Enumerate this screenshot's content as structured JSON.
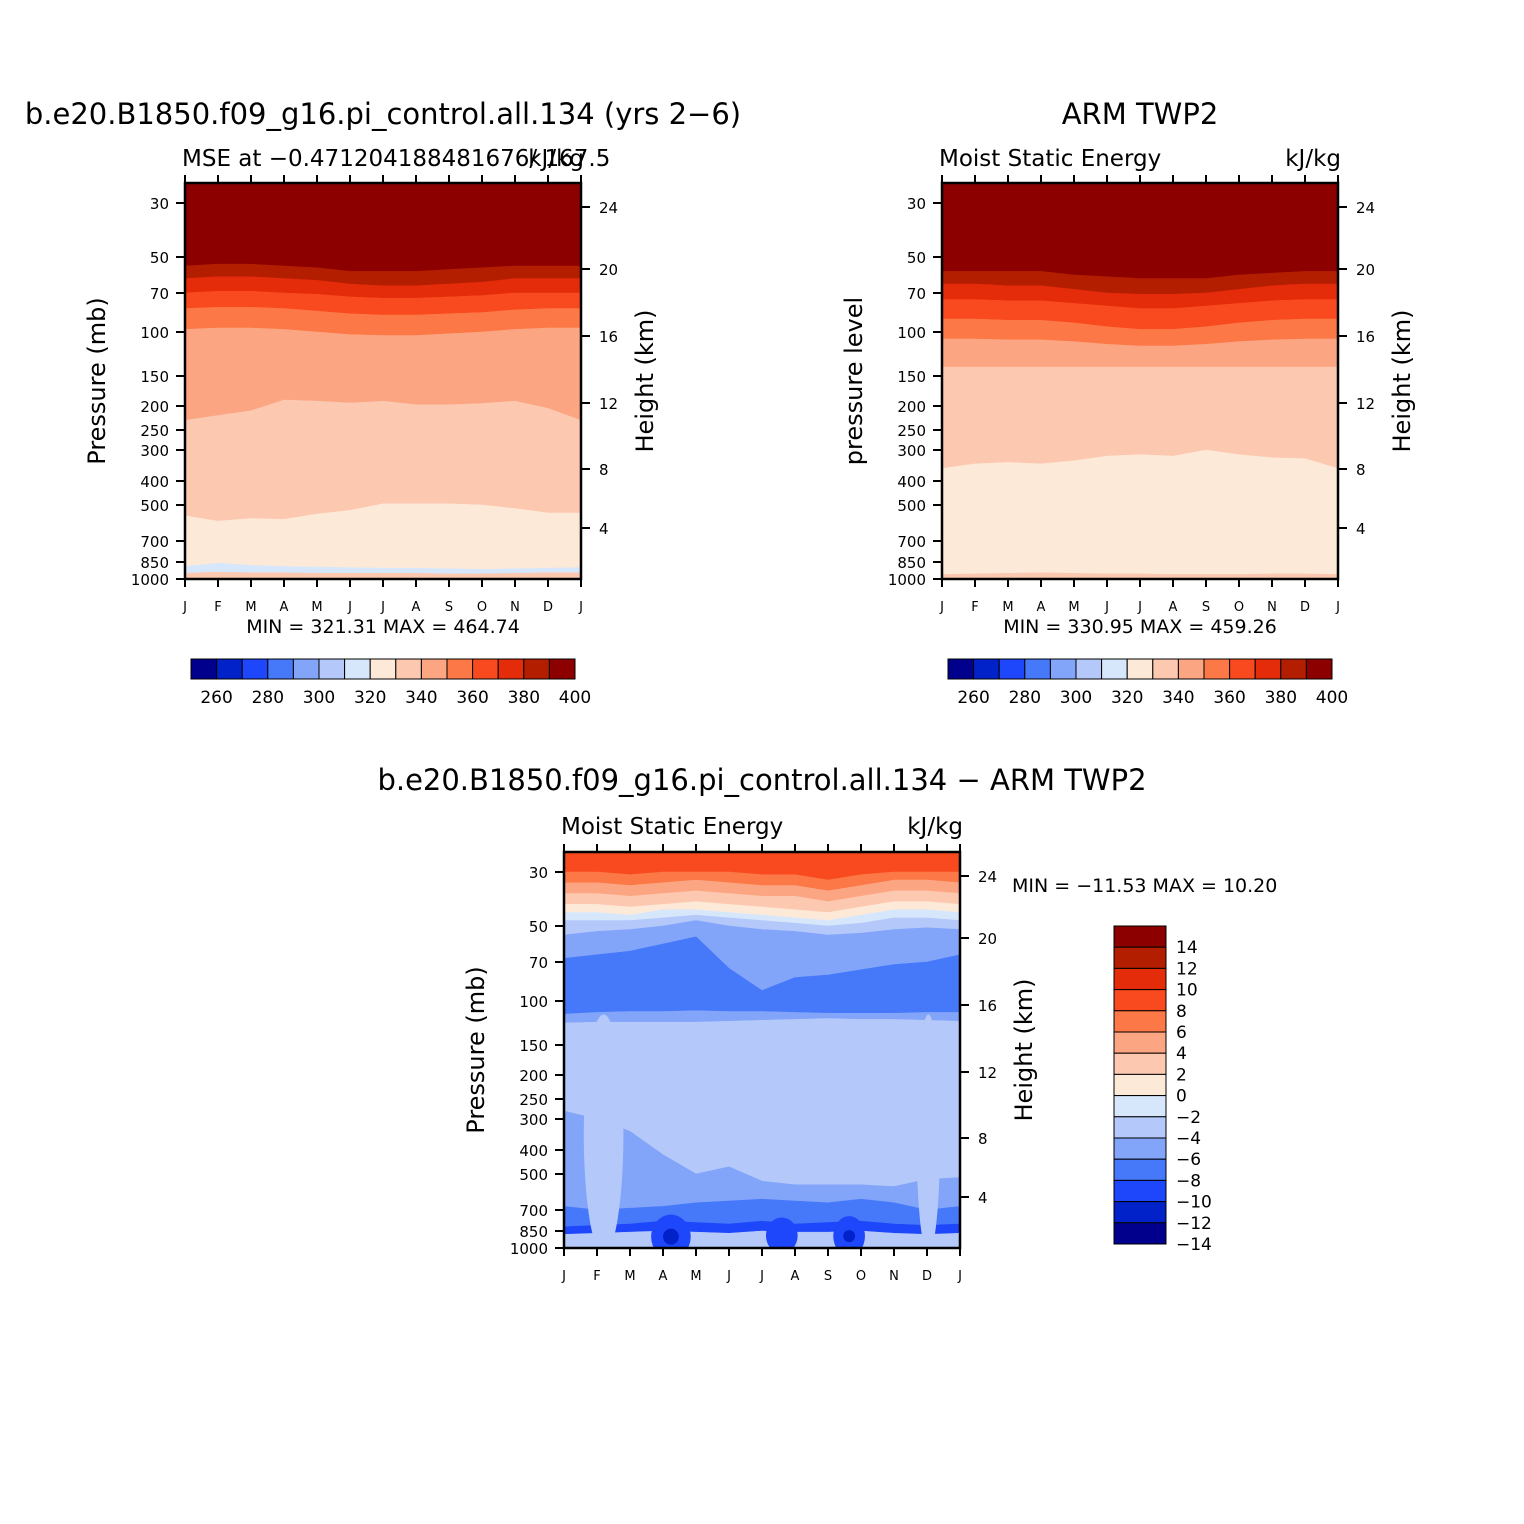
{
  "chart_data": [
    {
      "type": "heatmap",
      "title": "b.e20.B1850.f09_g16.pi_control.all.134 (yrs 2−6)",
      "subtitle_left": "MSE at −0.471204188481676/ 167.5",
      "subtitle_right": "kJ/kg",
      "ylabel_left": "Pressure (mb)",
      "ylabel_right": "Height (km)",
      "x_ticks": [
        "J",
        "F",
        "M",
        "A",
        "M",
        "J",
        "J",
        "A",
        "S",
        "O",
        "N",
        "D",
        "J"
      ],
      "p_ticks": [
        30,
        50,
        70,
        100,
        150,
        200,
        250,
        300,
        400,
        500,
        700,
        850,
        1000
      ],
      "h_ticks": [
        24,
        20,
        16,
        12,
        8,
        4
      ],
      "stats": "MIN = 321.31 MAX = 464.74",
      "levels": [
        260,
        270,
        280,
        290,
        300,
        310,
        320,
        330,
        340,
        350,
        360,
        370,
        380,
        390,
        400
      ],
      "colorbar_labels": [
        "260",
        "280",
        "300",
        "320",
        "340",
        "360",
        "380",
        "400"
      ],
      "colors": [
        "#00008c",
        "#0022c8",
        "#1e46fa",
        "#4678fa",
        "#82a5fa",
        "#b4c8fa",
        "#d7e7fb",
        "#fde9d8",
        "#fcc8b0",
        "#fca582",
        "#fc7846",
        "#f84a1e",
        "#e42b0a",
        "#b41e00",
        "#8c0000"
      ]
    },
    {
      "type": "heatmap",
      "title": "ARM TWP2",
      "subtitle_left": "Moist Static Energy",
      "subtitle_right": "kJ/kg",
      "ylabel_left": "pressure level",
      "ylabel_right": "Height (km)",
      "x_ticks": [
        "J",
        "F",
        "M",
        "A",
        "M",
        "J",
        "J",
        "A",
        "S",
        "O",
        "N",
        "D",
        "J"
      ],
      "p_ticks": [
        30,
        50,
        70,
        100,
        150,
        200,
        250,
        300,
        400,
        500,
        700,
        850,
        1000
      ],
      "h_ticks": [
        24,
        20,
        16,
        12,
        8,
        4
      ],
      "stats": "MIN = 330.95 MAX = 459.26",
      "levels": [
        260,
        270,
        280,
        290,
        300,
        310,
        320,
        330,
        340,
        350,
        360,
        370,
        380,
        390,
        400
      ],
      "colorbar_labels": [
        "260",
        "280",
        "300",
        "320",
        "340",
        "360",
        "380",
        "400"
      ],
      "colors": [
        "#00008c",
        "#0022c8",
        "#1e46fa",
        "#4678fa",
        "#82a5fa",
        "#b4c8fa",
        "#d7e7fb",
        "#fde9d8",
        "#fcc8b0",
        "#fca582",
        "#fc7846",
        "#f84a1e",
        "#e42b0a",
        "#b41e00",
        "#8c0000"
      ]
    },
    {
      "type": "heatmap",
      "title": "b.e20.B1850.f09_g16.pi_control.all.134 − ARM TWP2",
      "subtitle_left": "Moist Static Energy",
      "subtitle_right": "kJ/kg",
      "ylabel_left": "Pressure (mb)",
      "ylabel_right": "Height (km)",
      "x_ticks": [
        "J",
        "F",
        "M",
        "A",
        "M",
        "J",
        "J",
        "A",
        "S",
        "O",
        "N",
        "D",
        "J"
      ],
      "p_ticks": [
        30,
        50,
        70,
        100,
        150,
        200,
        250,
        300,
        400,
        500,
        700,
        850,
        1000
      ],
      "h_ticks": [
        24,
        20,
        16,
        12,
        8,
        4
      ],
      "stats": "MIN = −11.53 MAX =   10.20",
      "levels": [
        -14,
        -12,
        -10,
        -8,
        -6,
        -4,
        -2,
        0,
        2,
        4,
        6,
        8,
        10,
        12,
        14
      ],
      "colorbar_labels": [
        "14",
        "12",
        "10",
        "8",
        "6",
        "4",
        "2",
        "0",
        "−2",
        "−4",
        "−6",
        "−8",
        "−10",
        "−12",
        "−14"
      ],
      "colors": [
        "#00008c",
        "#0022c8",
        "#1e46fa",
        "#4678fa",
        "#82a5fa",
        "#b4c8fa",
        "#d7e7fb",
        "#fde9d8",
        "#fcc8b0",
        "#fca582",
        "#fc7846",
        "#f84a1e",
        "#e42b0a",
        "#b41e00",
        "#8c0000"
      ]
    }
  ]
}
